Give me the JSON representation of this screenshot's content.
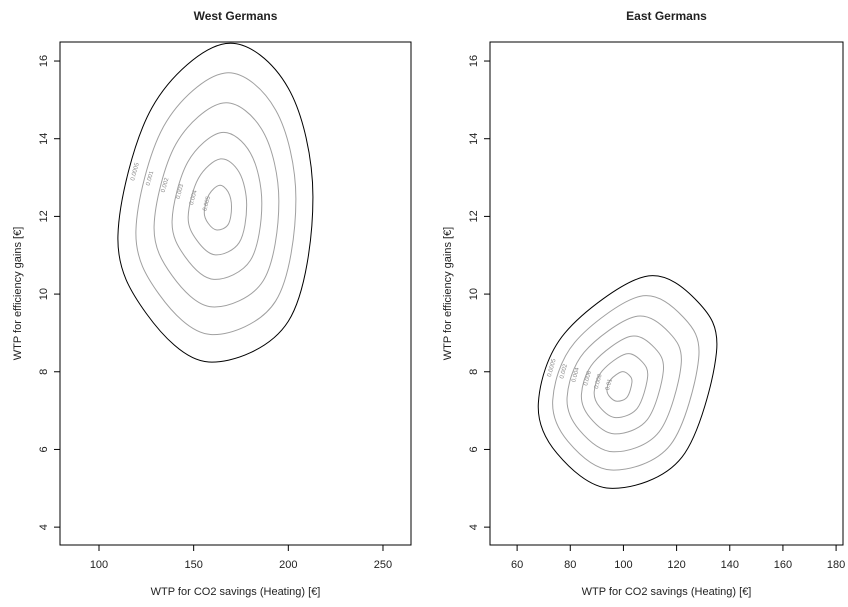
{
  "chart_data": [
    {
      "type": "contour",
      "title": "West Germans",
      "xlabel": "WTP for CO2 savings (Heating) [€]",
      "ylabel": "WTP for efficiency gains [€]",
      "xlim": [
        79.4,
        264.8
      ],
      "ylim": [
        3.54,
        16.49
      ],
      "xticks": [
        100,
        150,
        200,
        250
      ],
      "yticks": [
        4,
        6,
        8,
        10,
        12,
        14,
        16
      ],
      "series": [
        {
          "level": 0.0005,
          "color": "#000000",
          "x": [
            167,
            200,
            213,
            200,
            158,
            125,
            110,
            128
          ],
          "y": [
            16.45,
            15.3,
            12.5,
            9.3,
            8.25,
            9.5,
            11.5,
            14.8
          ]
        },
        {
          "level": 0.001,
          "color": "#a0a0a0",
          "x": [
            166.3,
            193.3,
            204,
            193.3,
            158.9,
            131.8,
            119.5,
            134.3
          ],
          "y": [
            15.69,
            14.74,
            12.45,
            9.82,
            8.96,
            9.99,
            11.63,
            14.33
          ]
        },
        {
          "level": 0.002,
          "color": "#a0a0a0",
          "x": [
            165.6,
            186.7,
            195,
            186.7,
            159.8,
            138.7,
            129.1,
            140.6
          ],
          "y": [
            14.92,
            14.18,
            12.39,
            10.34,
            9.67,
            10.47,
            11.75,
            13.86
          ]
        },
        {
          "level": 0.003,
          "color": "#a0a0a0",
          "x": [
            164.8,
            180,
            186,
            180,
            160.7,
            145.5,
            138.6,
            146.9
          ],
          "y": [
            14.16,
            13.63,
            12.34,
            10.87,
            10.38,
            10.96,
            11.88,
            13.4
          ]
        },
        {
          "level": 0.004,
          "color": "#a0a0a0",
          "x": [
            164.2,
            174.1,
            178,
            174.1,
            161.5,
            151.6,
            147.1,
            152.5
          ],
          "y": [
            13.48,
            13.13,
            12.29,
            11.33,
            11.01,
            11.39,
            11.99,
            12.98
          ]
        },
        {
          "level": 0.005,
          "color": "#a0a0a0",
          "x": [
            163.6,
            168.2,
            170,
            168.2,
            162.3,
            157.7,
            155.6,
            158.1
          ],
          "y": [
            12.8,
            12.63,
            12.24,
            11.79,
            11.65,
            11.82,
            12.1,
            12.56
          ]
        }
      ]
    },
    {
      "type": "contour",
      "title": "East Germans",
      "xlabel": "WTP for CO2 savings (Heating) [€]",
      "ylabel": "WTP for efficiency gains [€]",
      "xlim": [
        49.8,
        182.6
      ],
      "ylim": [
        3.54,
        16.49
      ],
      "xticks": [
        60,
        80,
        100,
        120,
        140,
        160,
        180
      ],
      "yticks": [
        4,
        6,
        8,
        10,
        12,
        14,
        16
      ],
      "series": [
        {
          "level": 0.0005,
          "color": "#000000",
          "x": [
            108,
            128,
            135,
            122,
            95,
            75,
            68,
            78
          ],
          "y": [
            10.45,
            9.8,
            8.5,
            5.8,
            5.0,
            5.9,
            7.2,
            9.0
          ]
        },
        {
          "level": 0.002,
          "color": "#a0a0a0",
          "x": [
            106.2,
            122.6,
            128.3,
            117.7,
            95.5,
            79.1,
            73.4,
            81.6
          ],
          "y": [
            9.94,
            9.4,
            8.34,
            6.12,
            5.47,
            6.21,
            7.27,
            8.75
          ]
        },
        {
          "level": 0.004,
          "color": "#a0a0a0",
          "x": [
            104.4,
            117.2,
            121.7,
            113.4,
            96.1,
            83.3,
            78.8,
            85.2
          ],
          "y": [
            9.42,
            9.01,
            8.18,
            6.45,
            5.94,
            6.51,
            7.34,
            8.5
          ]
        },
        {
          "level": 0.006,
          "color": "#a0a0a0",
          "x": [
            102.6,
            111.8,
            115,
            109,
            96.6,
            87.4,
            84.2,
            88.8
          ],
          "y": [
            8.91,
            8.61,
            8.01,
            6.77,
            6.4,
            6.82,
            7.42,
            8.24
          ]
        },
        {
          "level": 0.008,
          "color": "#a0a0a0",
          "x": [
            101,
            107,
            109.1,
            105.2,
            97.1,
            91.1,
            89,
            92
          ],
          "y": [
            8.46,
            8.26,
            7.87,
            7.06,
            6.82,
            7.09,
            7.48,
            8.02
          ]
        },
        {
          "level": 0.01,
          "color": "#a0a0a0",
          "x": [
            99.4,
            102.2,
            103.2,
            101.4,
            97.6,
            94.8,
            93.8,
            95.2
          ],
          "y": [
            8,
            7.91,
            7.73,
            7.35,
            7.24,
            7.36,
            7.54,
            7.8
          ]
        }
      ]
    }
  ]
}
